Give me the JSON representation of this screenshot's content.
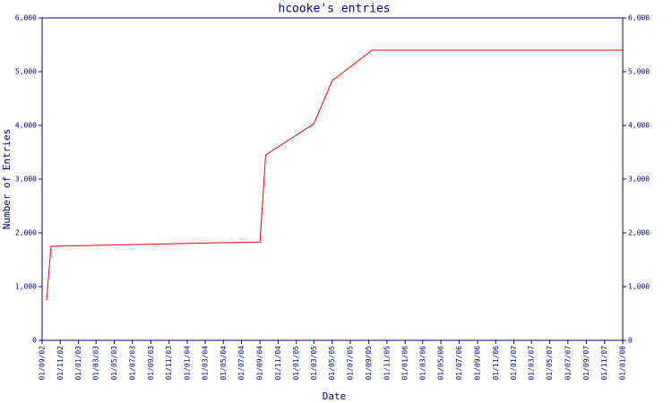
{
  "chart_data": {
    "type": "line",
    "title": "hcooke's entries",
    "x_label": "Date",
    "y_label": "Number of Entries",
    "x": [
      "2002-09-16",
      "2002-10-01",
      "2004-09-01",
      "2004-09-20",
      "2005-03-01",
      "2005-05-01",
      "2005-09-12",
      "2008-01-01"
    ],
    "values": [
      750,
      1750,
      1830,
      3450,
      4030,
      4830,
      5400,
      5400
    ],
    "color": "#ff0000",
    "xlim": [
      "2002-09-01",
      "2008-01-01"
    ],
    "xticks": [
      {
        "value": "2002-09-01",
        "label": "01/09/02"
      },
      {
        "value": "2002-11-01",
        "label": "01/11/02"
      },
      {
        "value": "2003-01-01",
        "label": "01/01/03"
      },
      {
        "value": "2003-03-01",
        "label": "01/03/03"
      },
      {
        "value": "2003-05-01",
        "label": "01/05/03"
      },
      {
        "value": "2003-07-01",
        "label": "01/07/03"
      },
      {
        "value": "2003-09-01",
        "label": "01/09/03"
      },
      {
        "value": "2003-11-01",
        "label": "01/11/03"
      },
      {
        "value": "2004-01-01",
        "label": "01/01/04"
      },
      {
        "value": "2004-03-01",
        "label": "01/03/04"
      },
      {
        "value": "2004-05-01",
        "label": "01/05/04"
      },
      {
        "value": "2004-07-01",
        "label": "01/07/04"
      },
      {
        "value": "2004-09-01",
        "label": "01/09/04"
      },
      {
        "value": "2004-11-01",
        "label": "01/11/04"
      },
      {
        "value": "2005-01-01",
        "label": "01/01/05"
      },
      {
        "value": "2005-03-01",
        "label": "01/03/05"
      },
      {
        "value": "2005-05-01",
        "label": "01/05/05"
      },
      {
        "value": "2005-07-01",
        "label": "01/07/05"
      },
      {
        "value": "2005-09-01",
        "label": "01/09/05"
      },
      {
        "value": "2005-11-01",
        "label": "01/11/05"
      },
      {
        "value": "2006-01-01",
        "label": "01/01/06"
      },
      {
        "value": "2006-03-01",
        "label": "01/03/06"
      },
      {
        "value": "2006-05-01",
        "label": "01/05/06"
      },
      {
        "value": "2006-07-01",
        "label": "01/07/06"
      },
      {
        "value": "2006-09-01",
        "label": "01/09/06"
      },
      {
        "value": "2006-11-01",
        "label": "01/11/06"
      },
      {
        "value": "2007-01-01",
        "label": "01/01/07"
      },
      {
        "value": "2007-03-01",
        "label": "01/03/07"
      },
      {
        "value": "2007-05-01",
        "label": "01/05/07"
      },
      {
        "value": "2007-07-01",
        "label": "01/07/07"
      },
      {
        "value": "2007-09-01",
        "label": "01/09/07"
      },
      {
        "value": "2007-11-01",
        "label": "01/11/07"
      },
      {
        "value": "2008-01-01",
        "label": "01/01/08"
      }
    ],
    "ylim": [
      0,
      6000
    ],
    "yticks": [
      0,
      {
        "value": 1000,
        "label": "1,000"
      },
      {
        "value": 2000,
        "label": "2,000"
      },
      {
        "value": 3000,
        "label": "3,000"
      },
      {
        "value": 4000,
        "label": "4,000"
      },
      {
        "value": 5000,
        "label": "5,000"
      },
      {
        "value": 6000,
        "label": "6,000"
      }
    ],
    "y2lim": [
      0,
      6000
    ],
    "y2ticks": [
      0,
      {
        "value": 1000,
        "label": "1,000"
      },
      {
        "value": 2000,
        "label": "2,000"
      },
      {
        "value": 3000,
        "label": "3,000"
      },
      {
        "value": 4000,
        "label": "4,000"
      },
      {
        "value": 5000,
        "label": "5,000"
      },
      {
        "value": 6000,
        "label": "6,000"
      }
    ],
    "axis_color": "#000080",
    "grid": false
  }
}
